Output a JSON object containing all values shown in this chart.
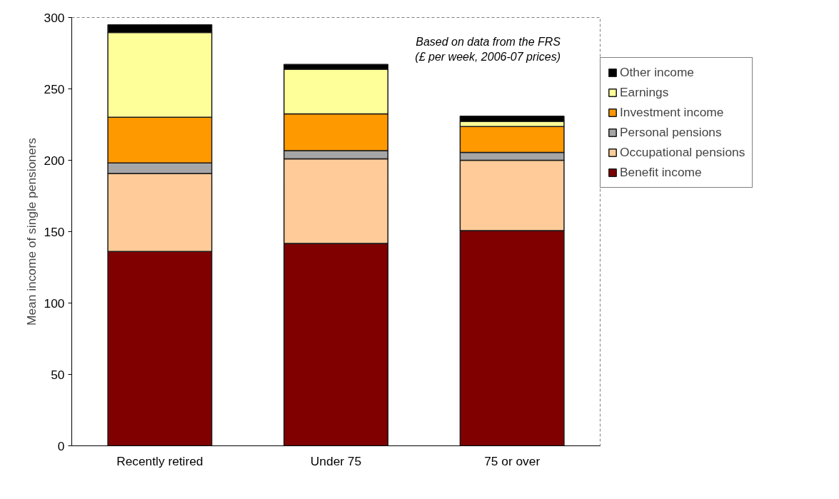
{
  "chart_data": {
    "type": "bar",
    "stacked": true,
    "ylabel": "Mean income of single pensioners",
    "categories": [
      "Recently retired",
      "Under 75",
      "75 or over"
    ],
    "series": [
      {
        "name": "Benefit income",
        "color": "#800000",
        "values": [
          136.1,
          141.7,
          150.7
        ]
      },
      {
        "name": "Occupational pensions",
        "color": "#ffcc99",
        "values": [
          54.7,
          59.3,
          49.3
        ]
      },
      {
        "name": "Personal pensions",
        "color": "#a6a6a6",
        "values": [
          7.3,
          5.7,
          5.5
        ]
      },
      {
        "name": "Investment income",
        "color": "#ff9900",
        "values": [
          32.0,
          25.8,
          18.1
        ]
      },
      {
        "name": "Earnings",
        "color": "#ffff99",
        "values": [
          59.4,
          31.2,
          3.7
        ]
      },
      {
        "name": "Other income",
        "color": "#000000",
        "values": [
          5.4,
          3.4,
          3.6
        ]
      }
    ],
    "ylim": [
      0,
      300
    ],
    "yticks": [
      0,
      50,
      100,
      150,
      200,
      250,
      300
    ],
    "grid": false,
    "legend": "top right",
    "annotations": [
      "Based on data from the FRS",
      "(£ per week, 2006-07 prices)"
    ]
  }
}
